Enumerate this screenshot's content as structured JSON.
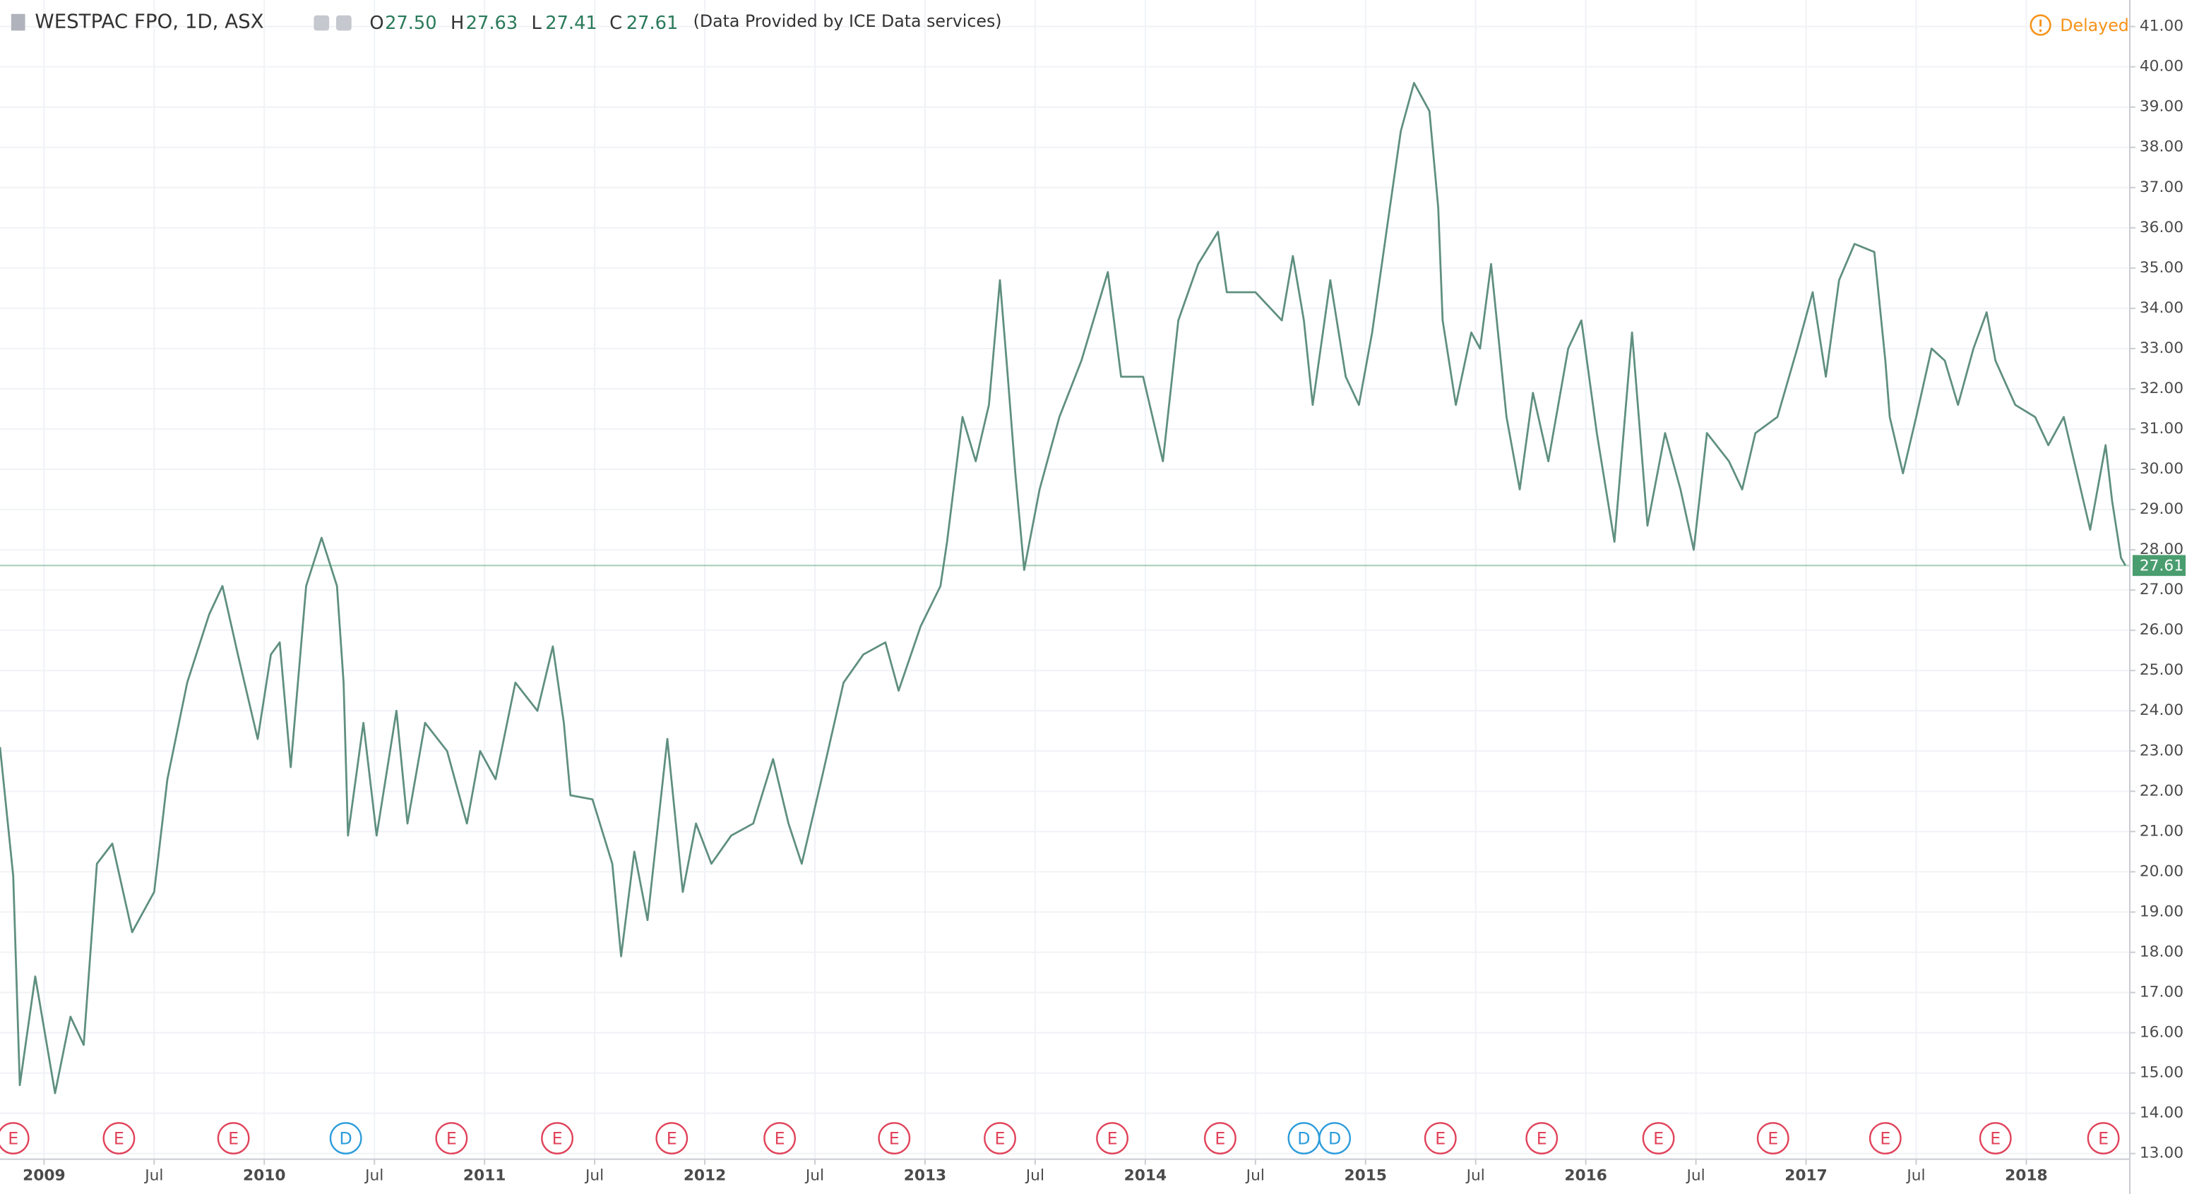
{
  "chart_data": {
    "type": "line",
    "header": {
      "symbol": "WESTPAC FPO, 1D, ASX",
      "open_label": "O",
      "open": "27.50",
      "high_label": "H",
      "high": "27.63",
      "low_label": "L",
      "low": "27.41",
      "close_label": "C",
      "close": "27.61",
      "source": "(Data Provided by ICE Data services)",
      "status": "Delayed"
    },
    "x": [
      2008.8,
      2008.86,
      2008.89,
      2008.96,
      2009.05,
      2009.12,
      2009.18,
      2009.24,
      2009.31,
      2009.4,
      2009.5,
      2009.56,
      2009.65,
      2009.75,
      2009.81,
      2009.88,
      2009.97,
      2010.03,
      2010.07,
      2010.12,
      2010.19,
      2010.26,
      2010.33,
      2010.36,
      2010.38,
      2010.45,
      2010.51,
      2010.6,
      2010.65,
      2010.73,
      2010.83,
      2010.92,
      2010.98,
      2011.05,
      2011.14,
      2011.24,
      2011.31,
      2011.36,
      2011.39,
      2011.49,
      2011.58,
      2011.62,
      2011.68,
      2011.74,
      2011.83,
      2011.9,
      2011.96,
      2012.03,
      2012.12,
      2012.22,
      2012.31,
      2012.38,
      2012.44,
      2012.53,
      2012.63,
      2012.72,
      2012.82,
      2012.88,
      2012.98,
      2013.07,
      2013.1,
      2013.17,
      2013.23,
      2013.29,
      2013.34,
      2013.37,
      2013.41,
      2013.45,
      2013.52,
      2013.61,
      2013.71,
      2013.83,
      2013.89,
      2013.99,
      2014.08,
      2014.15,
      2014.24,
      2014.33,
      2014.37,
      2014.5,
      2014.62,
      2014.67,
      2014.72,
      2014.76,
      2014.84,
      2014.91,
      2014.97,
      2015.03,
      2015.1,
      2015.16,
      2015.22,
      2015.29,
      2015.33,
      2015.35,
      2015.41,
      2015.48,
      2015.52,
      2015.57,
      2015.64,
      2015.7,
      2015.76,
      2015.83,
      2015.92,
      2015.98,
      2016.05,
      2016.13,
      2016.21,
      2016.28,
      2016.36,
      2016.43,
      2016.49,
      2016.55,
      2016.65,
      2016.71,
      2016.77,
      2016.87,
      2016.96,
      2017.03,
      2017.09,
      2017.15,
      2017.22,
      2017.31,
      2017.36,
      2017.38,
      2017.44,
      2017.5,
      2017.57,
      2017.63,
      2017.69,
      2017.76,
      2017.82,
      2017.86,
      2017.95,
      2018.04,
      2018.1,
      2018.17,
      2018.23,
      2018.29,
      2018.36,
      2018.39,
      2018.43,
      2018.45
    ],
    "series": [
      {
        "color": "#5f8f80",
        "values": [
          23.1,
          19.9,
          14.7,
          17.4,
          14.5,
          16.4,
          15.7,
          20.2,
          20.7,
          18.5,
          19.5,
          22.3,
          24.7,
          26.4,
          27.1,
          25.4,
          23.3,
          25.4,
          25.7,
          22.6,
          27.1,
          28.3,
          27.1,
          24.7,
          20.9,
          23.7,
          20.9,
          24.0,
          21.2,
          23.7,
          23.0,
          21.2,
          23.0,
          22.3,
          24.7,
          24.0,
          25.6,
          23.7,
          21.9,
          21.8,
          20.2,
          17.9,
          20.5,
          18.8,
          23.3,
          19.5,
          21.2,
          20.2,
          20.9,
          21.2,
          22.8,
          21.2,
          20.2,
          22.3,
          24.7,
          25.4,
          25.7,
          24.5,
          26.1,
          27.1,
          28.2,
          31.3,
          30.2,
          31.6,
          34.7,
          32.7,
          29.9,
          27.5,
          29.5,
          31.3,
          32.7,
          34.9,
          32.3,
          32.3,
          30.2,
          33.7,
          35.1,
          35.9,
          34.4,
          34.4,
          33.7,
          35.3,
          33.7,
          31.6,
          34.7,
          32.3,
          31.6,
          33.4,
          36.1,
          38.4,
          39.6,
          38.9,
          36.5,
          33.7,
          31.6,
          33.4,
          33.0,
          35.1,
          31.3,
          29.5,
          31.9,
          30.2,
          33.0,
          33.7,
          30.9,
          28.2,
          33.4,
          28.6,
          30.9,
          29.5,
          28.0,
          30.9,
          30.2,
          29.5,
          30.9,
          31.3,
          33.0,
          34.4,
          32.3,
          34.7,
          35.6,
          35.4,
          32.7,
          31.3,
          29.9,
          31.3,
          33.0,
          32.7,
          31.6,
          33.0,
          33.9,
          32.7,
          31.6,
          31.3,
          30.6,
          31.3,
          29.9,
          28.5,
          30.6,
          29.2,
          27.8,
          27.61
        ]
      }
    ],
    "last_price": {
      "value": 27.61,
      "label": "27.61",
      "color": "#4a9d6f"
    },
    "xlim": [
      2008.8,
      2018.47
    ],
    "ylim": [
      12.86,
      41.66
    ],
    "xticks": [
      {
        "value": 2009,
        "label": "2009"
      },
      {
        "value": 2009.5,
        "label": "Jul"
      },
      {
        "value": 2010,
        "label": "2010"
      },
      {
        "value": 2010.5,
        "label": "Jul"
      },
      {
        "value": 2011,
        "label": "2011"
      },
      {
        "value": 2011.5,
        "label": "Jul"
      },
      {
        "value": 2012,
        "label": "2012"
      },
      {
        "value": 2012.5,
        "label": "Jul"
      },
      {
        "value": 2013,
        "label": "2013"
      },
      {
        "value": 2013.5,
        "label": "Jul"
      },
      {
        "value": 2014,
        "label": "2014"
      },
      {
        "value": 2014.5,
        "label": "Jul"
      },
      {
        "value": 2015,
        "label": "2015"
      },
      {
        "value": 2015.5,
        "label": "Jul"
      },
      {
        "value": 2016,
        "label": "2016"
      },
      {
        "value": 2016.5,
        "label": "Jul"
      },
      {
        "value": 2017,
        "label": "2017"
      },
      {
        "value": 2017.5,
        "label": "Jul"
      },
      {
        "value": 2018,
        "label": "2018"
      }
    ],
    "yticks": [
      {
        "value": 13,
        "label": "13.00"
      },
      {
        "value": 14,
        "label": "14.00"
      },
      {
        "value": 15,
        "label": "15.00"
      },
      {
        "value": 16,
        "label": "16.00"
      },
      {
        "value": 17,
        "label": "17.00"
      },
      {
        "value": 18,
        "label": "18.00"
      },
      {
        "value": 19,
        "label": "19.00"
      },
      {
        "value": 20,
        "label": "20.00"
      },
      {
        "value": 21,
        "label": "21.00"
      },
      {
        "value": 22,
        "label": "22.00"
      },
      {
        "value": 23,
        "label": "23.00"
      },
      {
        "value": 24,
        "label": "24.00"
      },
      {
        "value": 25,
        "label": "25.00"
      },
      {
        "value": 26,
        "label": "26.00"
      },
      {
        "value": 27,
        "label": "27.00"
      },
      {
        "value": 28,
        "label": "28.00"
      },
      {
        "value": 29,
        "label": "29.00"
      },
      {
        "value": 30,
        "label": "30.00"
      },
      {
        "value": 31,
        "label": "31.00"
      },
      {
        "value": 32,
        "label": "32.00"
      },
      {
        "value": 33,
        "label": "33.00"
      },
      {
        "value": 34,
        "label": "34.00"
      },
      {
        "value": 35,
        "label": "35.00"
      },
      {
        "value": 36,
        "label": "36.00"
      },
      {
        "value": 37,
        "label": "37.00"
      },
      {
        "value": 38,
        "label": "38.00"
      },
      {
        "value": 39,
        "label": "39.00"
      },
      {
        "value": 40,
        "label": "40.00"
      },
      {
        "value": 41,
        "label": "41.00"
      }
    ],
    "grid": true,
    "events": [
      {
        "x": 2008.86,
        "label": "E",
        "color": "#e0435a"
      },
      {
        "x": 2009.34,
        "label": "E",
        "color": "#e0435a"
      },
      {
        "x": 2009.86,
        "label": "E",
        "color": "#e0435a"
      },
      {
        "x": 2010.37,
        "label": "D",
        "color": "#2b9cdb"
      },
      {
        "x": 2010.85,
        "label": "E",
        "color": "#e0435a"
      },
      {
        "x": 2011.33,
        "label": "E",
        "color": "#e0435a"
      },
      {
        "x": 2011.85,
        "label": "E",
        "color": "#e0435a"
      },
      {
        "x": 2012.34,
        "label": "E",
        "color": "#e0435a"
      },
      {
        "x": 2012.86,
        "label": "E",
        "color": "#e0435a"
      },
      {
        "x": 2013.34,
        "label": "E",
        "color": "#e0435a"
      },
      {
        "x": 2013.85,
        "label": "E",
        "color": "#e0435a"
      },
      {
        "x": 2014.34,
        "label": "E",
        "color": "#e0435a"
      },
      {
        "x": 2014.72,
        "label": "D",
        "color": "#2b9cdb"
      },
      {
        "x": 2014.86,
        "label": "D",
        "color": "#2b9cdb"
      },
      {
        "x": 2015.34,
        "label": "E",
        "color": "#e0435a"
      },
      {
        "x": 2015.8,
        "label": "E",
        "color": "#e0435a"
      },
      {
        "x": 2016.33,
        "label": "E",
        "color": "#e0435a"
      },
      {
        "x": 2016.85,
        "label": "E",
        "color": "#e0435a"
      },
      {
        "x": 2017.36,
        "label": "E",
        "color": "#e0435a"
      },
      {
        "x": 2017.86,
        "label": "E",
        "color": "#e0435a"
      },
      {
        "x": 2018.35,
        "label": "E",
        "color": "#e0435a"
      }
    ]
  }
}
